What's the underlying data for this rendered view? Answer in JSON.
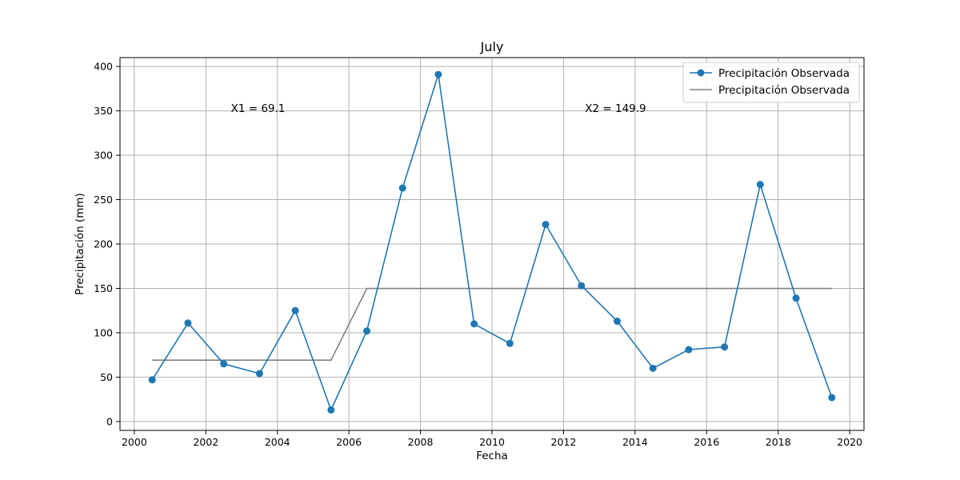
{
  "chart_data": {
    "type": "line",
    "title": "July",
    "xlabel": "Fecha",
    "ylabel": "Precipitación (mm)",
    "xlim": [
      1999.6,
      2020.4
    ],
    "ylim": [
      -10,
      410
    ],
    "x_ticks": [
      2000,
      2002,
      2004,
      2006,
      2008,
      2010,
      2012,
      2014,
      2016,
      2018,
      2020
    ],
    "y_ticks": [
      0,
      50,
      100,
      150,
      200,
      250,
      300,
      350,
      400
    ],
    "grid": true,
    "legend_position": "top-right",
    "series": [
      {
        "name": "Precipitación Observada",
        "style": "line-marker",
        "color": "#1f77b4",
        "x": [
          2000.5,
          2001.5,
          2002.5,
          2003.5,
          2004.5,
          2005.5,
          2006.5,
          2007.5,
          2008.5,
          2009.5,
          2010.5,
          2011.5,
          2012.5,
          2013.5,
          2014.5,
          2015.5,
          2016.5,
          2017.5,
          2018.5,
          2019.5
        ],
        "y": [
          47,
          111,
          65,
          54,
          125,
          13,
          102,
          263,
          391,
          110,
          88,
          222,
          153,
          113,
          60,
          81,
          84,
          267,
          139,
          27
        ]
      },
      {
        "name": "Precipitación Observada",
        "style": "line",
        "color": "#808080",
        "x": [
          2000.5,
          2005.5,
          2006.5,
          2019.5
        ],
        "y": [
          69.1,
          69.1,
          149.9,
          149.9
        ]
      }
    ],
    "annotations": [
      {
        "text": "X1 = 69.1",
        "x": 2002.7,
        "y": 353
      },
      {
        "text": "X2 = 149.9",
        "x": 2012.6,
        "y": 353
      }
    ]
  }
}
